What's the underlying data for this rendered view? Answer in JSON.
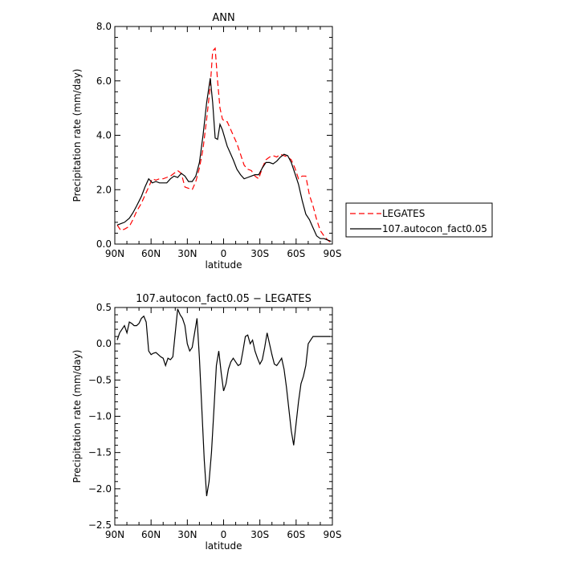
{
  "chart_data": [
    {
      "type": "line",
      "title": "ANN",
      "xlabel": "latitude",
      "ylabel": "Precipitation rate (mm/day)",
      "ylim": [
        0,
        8
      ],
      "xlim": [
        90,
        -90
      ],
      "x_ticks": [
        {
          "value": 90,
          "label": "90N"
        },
        {
          "value": 60,
          "label": "60N"
        },
        {
          "value": 30,
          "label": "30N"
        },
        {
          "value": 0,
          "label": "0"
        },
        {
          "value": -30,
          "label": "30S"
        },
        {
          "value": -60,
          "label": "60S"
        },
        {
          "value": -90,
          "label": "90S"
        }
      ],
      "y_ticks": [
        {
          "value": 0,
          "label": "0.0"
        },
        {
          "value": 2,
          "label": "2.0"
        },
        {
          "value": 4,
          "label": "4.0"
        },
        {
          "value": 6,
          "label": "6.0"
        },
        {
          "value": 8,
          "label": "8.0"
        }
      ],
      "legend_position": "right",
      "series": [
        {
          "name": "LEGATES",
          "color": "#ff0000",
          "dash": "dashed",
          "x": [
            88,
            85,
            82,
            78,
            75,
            72,
            68,
            65,
            62,
            59,
            56,
            53,
            50,
            47,
            44,
            41,
            38,
            35,
            32,
            29,
            26,
            23,
            20,
            17,
            14,
            11,
            9,
            7,
            5,
            3,
            1,
            -1,
            -3,
            -5,
            -8,
            -11,
            -14,
            -17,
            -20,
            -23,
            -26,
            -29,
            -32,
            -35,
            -38,
            -41,
            -44,
            -47,
            -50,
            -53,
            -56,
            -59,
            -62,
            -65,
            -68,
            -71,
            -74,
            -77,
            -80,
            -83,
            -86,
            -89
          ],
          "y": [
            0.7,
            0.5,
            0.55,
            0.65,
            0.9,
            1.2,
            1.5,
            1.8,
            2.1,
            2.4,
            2.35,
            2.4,
            2.4,
            2.45,
            2.5,
            2.6,
            2.7,
            2.6,
            2.1,
            2.05,
            2.0,
            2.3,
            2.8,
            3.5,
            4.6,
            5.8,
            7.1,
            7.2,
            6.0,
            5.0,
            4.6,
            4.5,
            4.5,
            4.3,
            4.0,
            3.7,
            3.3,
            2.9,
            2.75,
            2.7,
            2.5,
            2.4,
            2.8,
            3.1,
            3.2,
            3.25,
            3.2,
            3.3,
            3.25,
            3.2,
            3.1,
            2.8,
            2.4,
            2.5,
            2.5,
            1.8,
            1.4,
            0.9,
            0.5,
            0.3,
            0.15,
            0.05
          ]
        },
        {
          "name": "107.autocon_fact0.05",
          "color": "#000000",
          "dash": "solid",
          "x": [
            88,
            85,
            82,
            78,
            75,
            72,
            68,
            65,
            62,
            59,
            56,
            53,
            50,
            47,
            44,
            41,
            38,
            35,
            32,
            29,
            26,
            23,
            20,
            17,
            14,
            11,
            9,
            7,
            5,
            3,
            1,
            -1,
            -3,
            -5,
            -8,
            -11,
            -14,
            -17,
            -20,
            -23,
            -26,
            -29,
            -32,
            -35,
            -38,
            -41,
            -44,
            -47,
            -50,
            -53,
            -56,
            -59,
            -62,
            -65,
            -68,
            -71,
            -74,
            -77,
            -80,
            -83,
            -86,
            -89
          ],
          "y": [
            0.7,
            0.75,
            0.8,
            0.95,
            1.15,
            1.4,
            1.75,
            2.1,
            2.4,
            2.25,
            2.3,
            2.25,
            2.25,
            2.25,
            2.4,
            2.5,
            2.45,
            2.6,
            2.5,
            2.3,
            2.3,
            2.5,
            3.0,
            4.0,
            5.2,
            6.1,
            5.2,
            3.9,
            3.85,
            4.4,
            4.2,
            3.9,
            3.6,
            3.4,
            3.1,
            2.75,
            2.55,
            2.4,
            2.45,
            2.5,
            2.55,
            2.55,
            2.8,
            3.0,
            3.0,
            2.95,
            3.05,
            3.2,
            3.3,
            3.25,
            3.0,
            2.6,
            2.2,
            1.6,
            1.1,
            0.9,
            0.6,
            0.3,
            0.2,
            0.2,
            0.15,
            0.1
          ]
        }
      ]
    },
    {
      "type": "line",
      "title": "107.autocon_fact0.05 − LEGATES",
      "xlabel": "latitude",
      "ylabel": "Precipitation rate (mm/day)",
      "ylim": [
        -2.5,
        0.5
      ],
      "xlim": [
        90,
        -90
      ],
      "x_ticks": [
        {
          "value": 90,
          "label": "90N"
        },
        {
          "value": 60,
          "label": "60N"
        },
        {
          "value": 30,
          "label": "30N"
        },
        {
          "value": 0,
          "label": "0"
        },
        {
          "value": -30,
          "label": "30S"
        },
        {
          "value": -60,
          "label": "60S"
        },
        {
          "value": -90,
          "label": "90S"
        }
      ],
      "y_ticks": [
        {
          "value": -2.5,
          "label": "−2.5"
        },
        {
          "value": -2.0,
          "label": "−2.0"
        },
        {
          "value": -1.5,
          "label": "−1.5"
        },
        {
          "value": -1.0,
          "label": "−1.0"
        },
        {
          "value": -0.5,
          "label": "−0.5"
        },
        {
          "value": 0.0,
          "label": "0.0"
        },
        {
          "value": 0.5,
          "label": "0.5"
        }
      ],
      "series": [
        {
          "color": "#000000",
          "dash": "solid",
          "x": [
            88,
            86,
            84,
            82,
            80,
            78,
            76,
            74,
            72,
            70,
            68,
            66,
            64,
            62,
            60,
            58,
            56,
            54,
            52,
            50,
            48,
            46,
            44,
            42,
            40,
            38,
            36,
            34,
            32,
            30,
            28,
            26,
            24,
            22,
            20,
            18,
            16,
            14,
            12,
            10,
            8,
            6,
            4,
            2,
            0,
            -2,
            -4,
            -6,
            -8,
            -10,
            -12,
            -14,
            -16,
            -18,
            -20,
            -22,
            -24,
            -26,
            -28,
            -30,
            -32,
            -34,
            -36,
            -38,
            -40,
            -42,
            -44,
            -46,
            -48,
            -50,
            -52,
            -54,
            -56,
            -58,
            -60,
            -62,
            -64,
            -66,
            -68,
            -70,
            -72,
            -74,
            -76,
            -78,
            -80,
            -82,
            -84,
            -86,
            -88
          ],
          "y": [
            0.05,
            0.15,
            0.2,
            0.25,
            0.15,
            0.3,
            0.28,
            0.25,
            0.25,
            0.28,
            0.35,
            0.38,
            0.3,
            -0.1,
            -0.15,
            -0.13,
            -0.12,
            -0.15,
            -0.18,
            -0.2,
            -0.3,
            -0.2,
            -0.22,
            -0.18,
            0.15,
            0.48,
            0.4,
            0.35,
            0.25,
            0.0,
            -0.1,
            -0.05,
            0.15,
            0.35,
            -0.2,
            -0.9,
            -1.6,
            -2.1,
            -1.9,
            -1.5,
            -0.9,
            -0.3,
            -0.1,
            -0.4,
            -0.65,
            -0.55,
            -0.35,
            -0.25,
            -0.2,
            -0.25,
            -0.3,
            -0.28,
            -0.1,
            0.1,
            0.12,
            0.0,
            0.05,
            -0.1,
            -0.2,
            -0.28,
            -0.22,
            -0.05,
            0.15,
            0.0,
            -0.15,
            -0.28,
            -0.3,
            -0.25,
            -0.2,
            -0.35,
            -0.6,
            -0.9,
            -1.2,
            -1.4,
            -1.1,
            -0.8,
            -0.55,
            -0.45,
            -0.3,
            0.0,
            0.05,
            0.1,
            0.1,
            0.1,
            0.1,
            0.1,
            0.1,
            0.1,
            0.1
          ]
        }
      ]
    }
  ],
  "colors": {
    "model": "#000000",
    "obs": "#ff0000",
    "axis": "#000000"
  }
}
